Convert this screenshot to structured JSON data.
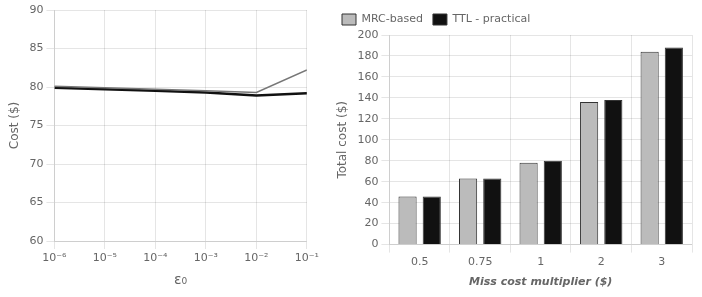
{
  "chart_data": [
    {
      "type": "line",
      "log": "x",
      "x": [
        1e-06,
        1e-05,
        0.0001,
        0.001,
        0.01,
        0.1
      ],
      "series": [
        {
          "color": "#777777",
          "values": [
            80.1,
            79.9,
            79.7,
            79.5,
            79.3,
            82.2
          ]
        },
        {
          "color": "#111111",
          "values": [
            79.9,
            79.7,
            79.5,
            79.3,
            78.9,
            79.2
          ]
        }
      ],
      "xlabel": "ε₀",
      "ylabel": "Cost ($)",
      "xlim": [
        1e-06,
        0.1
      ],
      "xticks": [
        {
          "value": 1e-06,
          "label": "10⁻⁶"
        },
        {
          "value": 1e-05,
          "label": "10⁻⁵"
        },
        {
          "value": 0.0001,
          "label": "10⁻⁴"
        },
        {
          "value": 0.001,
          "label": "10⁻³"
        },
        {
          "value": 0.01,
          "label": "10⁻²"
        },
        {
          "value": 0.1,
          "label": "10⁻¹"
        }
      ],
      "ylim": [
        60,
        90
      ],
      "yticks": [
        60,
        65,
        70,
        75,
        80,
        85,
        90
      ],
      "grid": true
    },
    {
      "type": "bar",
      "categories": [
        "0.5",
        "0.75",
        "1",
        "2",
        "3"
      ],
      "series": [
        {
          "name": "MRC-based",
          "color": "#bbbbbb",
          "values": [
            46,
            63,
            78,
            136,
            184
          ]
        },
        {
          "name": "TTL - practical",
          "color": "#111111",
          "values": [
            46,
            63,
            80,
            138,
            188
          ]
        }
      ],
      "xlabel": "Miss cost multiplier ($)",
      "ylabel": "Total cost ($)",
      "ylim": [
        0,
        200
      ],
      "yticks": [
        0,
        20,
        40,
        60,
        80,
        100,
        120,
        140,
        160,
        180,
        200
      ],
      "grid": true,
      "legend": "upper left"
    }
  ]
}
